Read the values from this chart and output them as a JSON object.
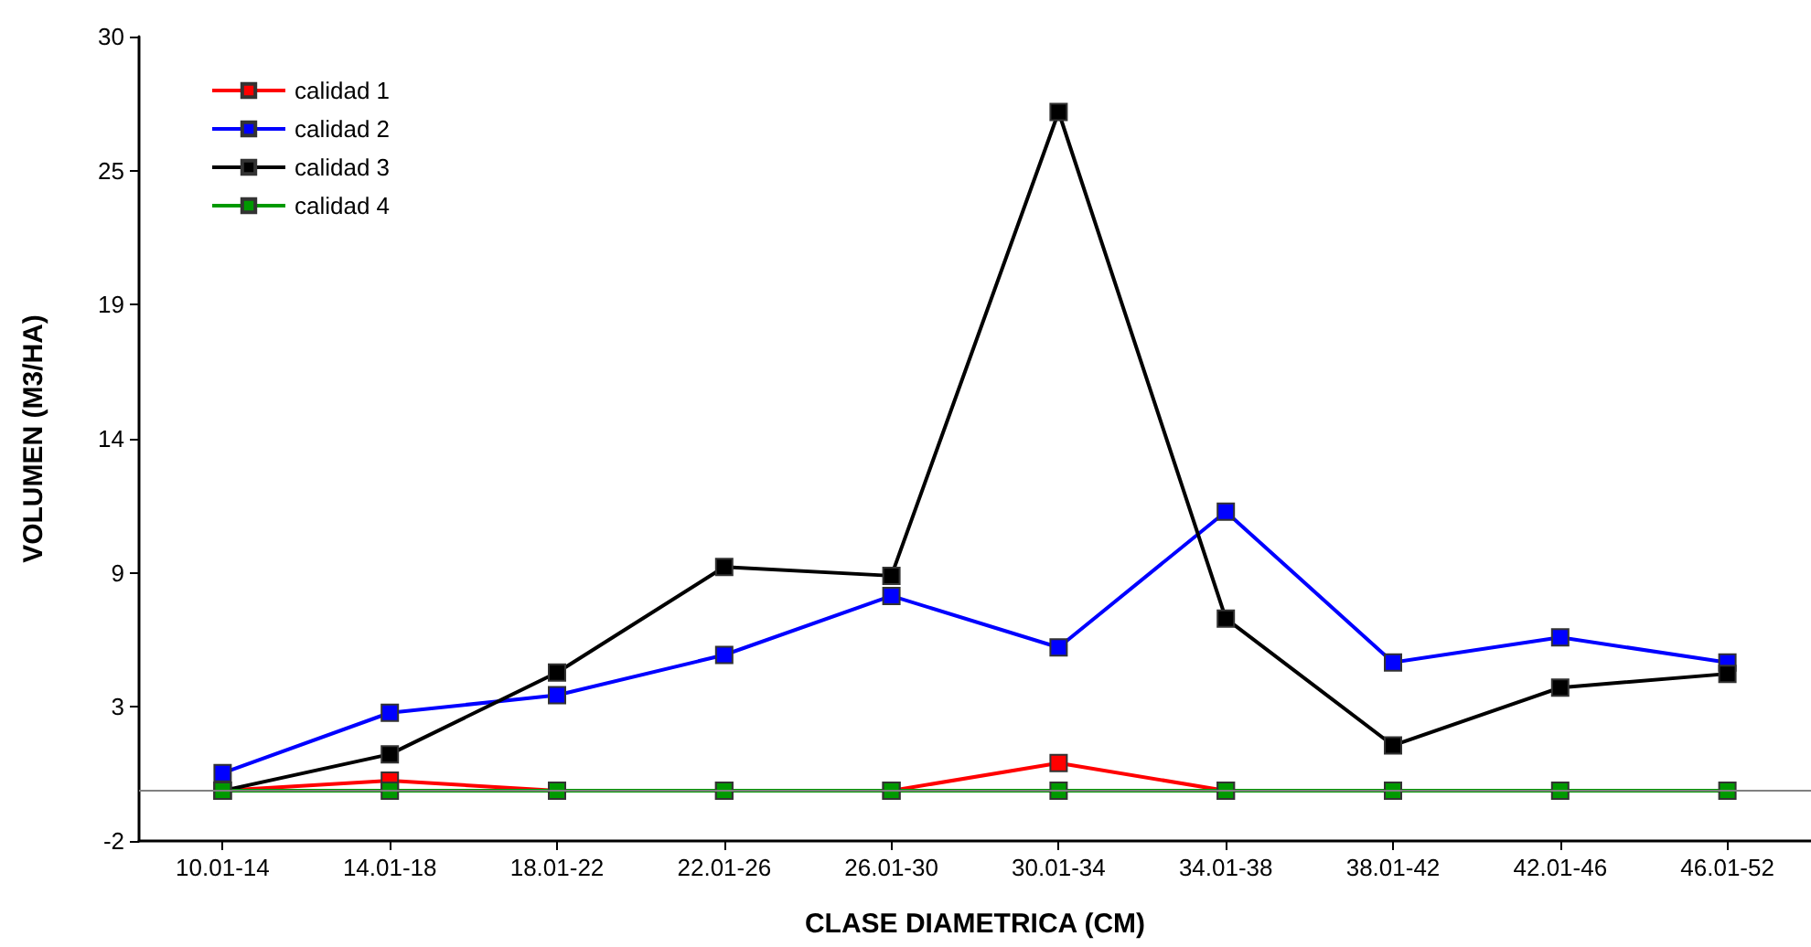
{
  "chart_data": {
    "type": "line",
    "xlabel": "CLASE DIAMETRICA (CM)",
    "ylabel": "VOLUMEN (M3/HA)",
    "categories": [
      "10.01-14",
      "14.01-18",
      "18.01-22",
      "22.01-26",
      "26.01-30",
      "30.01-34",
      "34.01-38",
      "38.01-42",
      "42.01-46",
      "46.01-52"
    ],
    "series": [
      {
        "name": "calidad 1",
        "color": "#ff0000",
        "values": [
          0,
          0.4,
          0,
          0,
          0,
          1.1,
          0,
          0,
          null,
          null
        ]
      },
      {
        "name": "calidad 2",
        "color": "#0000ff",
        "values": [
          0.7,
          3.1,
          3.8,
          5.4,
          7.75,
          5.7,
          11.1,
          5.1,
          6.1,
          5.1
        ]
      },
      {
        "name": "calidad 3",
        "color": "#000000",
        "values": [
          0,
          1.45,
          4.7,
          8.9,
          8.55,
          27,
          6.85,
          1.8,
          4.1,
          4.65
        ]
      },
      {
        "name": "calidad 4",
        "color": "#009900",
        "values": [
          0,
          0,
          0,
          0,
          0,
          0,
          0,
          0,
          0,
          0
        ]
      }
    ],
    "ylim": [
      -2,
      30
    ],
    "yticks": [
      -2,
      {
        "value": 3.33,
        "label": "3"
      },
      {
        "value": 8.67,
        "label": "9"
      },
      14,
      {
        "value": 19.33,
        "label": "19"
      },
      {
        "value": 24.67,
        "label": "25"
      },
      30
    ],
    "ref_lines": [
      {
        "axis": "y",
        "value": 0,
        "color": "#808080"
      }
    ],
    "grid": false,
    "legend": "top left",
    "marker": "square",
    "line_style": "solid"
  }
}
